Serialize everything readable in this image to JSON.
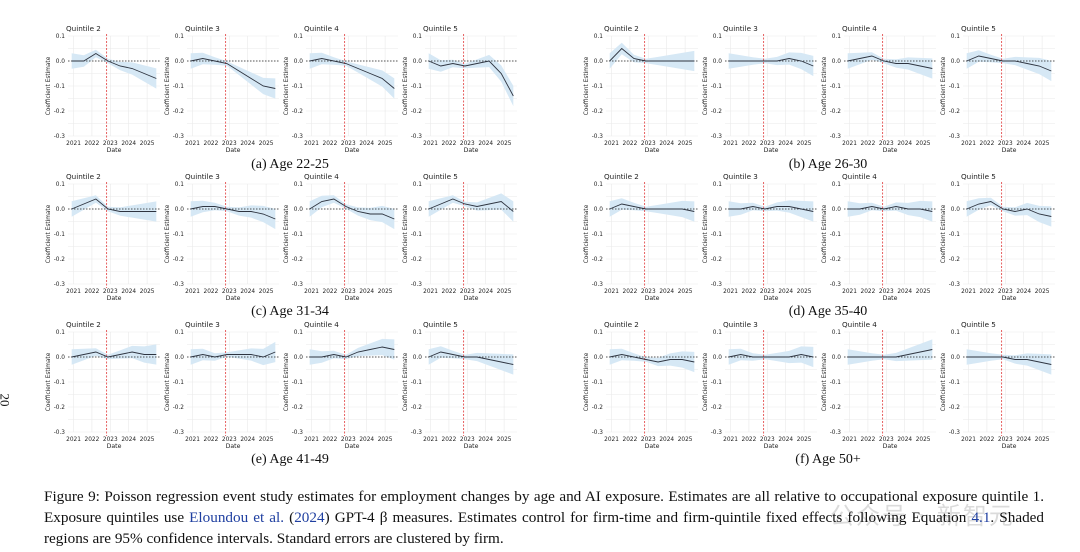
{
  "page_number": "20",
  "watermark_text": "公众号 · 新智元",
  "colors": {
    "line": "#2e3440",
    "band": "#d6e8f5",
    "vline": "#e03a3a",
    "zero": "#222222",
    "grid": "#e9e9e9"
  },
  "panels": [
    {
      "caption": "(a) Age 22-25",
      "row": 0,
      "col": 0
    },
    {
      "caption": "(b) Age 26-30",
      "row": 0,
      "col": 1
    },
    {
      "caption": "(c) Age 31-34",
      "row": 1,
      "col": 0
    },
    {
      "caption": "(d) Age 35-40",
      "row": 1,
      "col": 1
    },
    {
      "caption": "(e) Age 41-49",
      "row": 2,
      "col": 0
    },
    {
      "caption": "(f) Age 50+",
      "row": 2,
      "col": 1
    }
  ],
  "chart_data": {
    "type": "line",
    "subplot_titles": [
      "Quintile 2",
      "Quintile 3",
      "Quintile 4",
      "Quintile 5"
    ],
    "xlabel": "Date",
    "ylabel": "Coefficient Estimate",
    "x_ticks": [
      "2021",
      "2022",
      "2023",
      "2024",
      "2025"
    ],
    "y_ticks": [
      "0.1",
      "0.0",
      "-0.1",
      "-0.2",
      "-0.3"
    ],
    "ylim": [
      -0.3,
      0.1
    ],
    "xlim": [
      2020.7,
      2025.7
    ],
    "reference_date": 2022.8,
    "grid": true,
    "curves": [
      [
        [
          0.0,
          0.0,
          0.03,
          0.0,
          -0.02,
          -0.03,
          -0.05,
          -0.07
        ],
        [
          0.0,
          0.01,
          0.0,
          -0.01,
          -0.04,
          -0.07,
          -0.1,
          -0.11
        ],
        [
          0.0,
          0.01,
          0.0,
          -0.01,
          -0.03,
          -0.05,
          -0.07,
          -0.11
        ],
        [
          0.0,
          -0.02,
          -0.01,
          -0.02,
          -0.01,
          0.0,
          -0.05,
          -0.14
        ]
      ],
      [
        [
          0.0,
          0.05,
          0.01,
          0.0,
          0.0,
          0.0,
          0.0,
          0.0
        ],
        [
          0.0,
          0.0,
          0.0,
          0.0,
          0.0,
          0.01,
          0.0,
          -0.02
        ],
        [
          0.0,
          0.01,
          0.02,
          0.0,
          -0.01,
          -0.01,
          -0.02,
          -0.03
        ],
        [
          0.0,
          0.02,
          0.01,
          0.0,
          0.0,
          -0.01,
          -0.02,
          -0.04
        ]
      ],
      [
        [
          0.0,
          0.02,
          0.04,
          0.0,
          -0.01,
          -0.01,
          -0.01,
          -0.01
        ],
        [
          0.0,
          0.01,
          0.01,
          0.0,
          -0.01,
          -0.01,
          -0.02,
          -0.04
        ],
        [
          0.0,
          0.03,
          0.04,
          0.01,
          -0.01,
          -0.02,
          -0.02,
          -0.04
        ],
        [
          0.0,
          0.02,
          0.04,
          0.02,
          0.01,
          0.02,
          0.03,
          -0.01
        ]
      ],
      [
        [
          0.0,
          0.02,
          0.01,
          0.0,
          0.0,
          0.0,
          0.0,
          -0.01
        ],
        [
          0.0,
          0.0,
          0.01,
          0.0,
          0.01,
          0.01,
          0.0,
          -0.01
        ],
        [
          0.0,
          0.0,
          0.01,
          0.0,
          0.01,
          0.0,
          0.0,
          -0.01
        ],
        [
          0.0,
          0.02,
          0.03,
          0.0,
          -0.01,
          0.0,
          -0.02,
          -0.03
        ]
      ],
      [
        [
          0.0,
          0.01,
          0.02,
          0.0,
          0.01,
          0.02,
          0.01,
          0.01
        ],
        [
          0.0,
          0.01,
          0.0,
          0.01,
          0.01,
          0.01,
          0.0,
          0.02
        ],
        [
          0.0,
          0.0,
          0.01,
          0.0,
          0.02,
          0.03,
          0.04,
          0.03
        ],
        [
          0.0,
          0.02,
          0.01,
          0.0,
          0.0,
          -0.01,
          -0.02,
          -0.03
        ]
      ],
      [
        [
          0.0,
          0.01,
          0.0,
          -0.01,
          -0.02,
          -0.01,
          -0.01,
          -0.02
        ],
        [
          0.0,
          0.01,
          0.0,
          0.0,
          0.0,
          0.0,
          0.01,
          0.0
        ],
        [
          0.0,
          0.0,
          0.0,
          0.0,
          0.0,
          0.01,
          0.02,
          0.03
        ],
        [
          0.0,
          0.0,
          0.0,
          0.0,
          -0.01,
          -0.01,
          -0.02,
          -0.03
        ]
      ]
    ]
  },
  "caption": {
    "label": "Figure 9:",
    "part1": "Poisson regression event study estimates for employment changes by age and AI exposure. Estimates are all relative to occupational exposure quintile 1. Exposure quintiles use",
    "citation": "Eloundou et al.",
    "part2": "(",
    "year": "2024",
    "part3": ") GPT-4 β measures. Estimates control for firm-time and firm-quintile fixed effects following Equation",
    "eq": "4.1",
    "part4": ". Shaded regions are 95% confidence intervals. Standard errors are clustered by firm."
  }
}
